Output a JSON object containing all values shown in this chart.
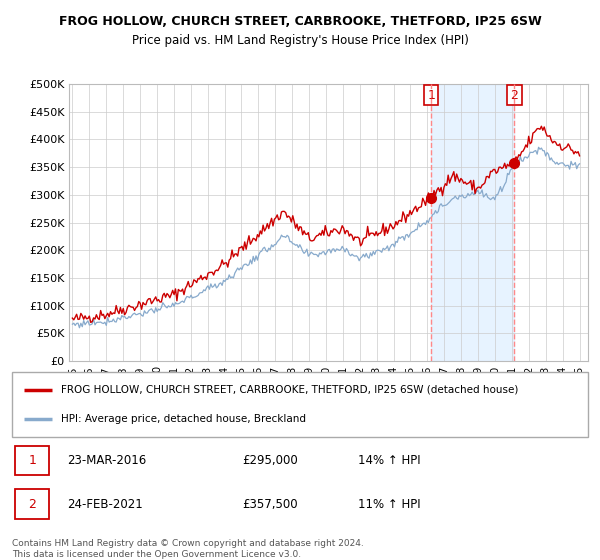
{
  "title1": "FROG HOLLOW, CHURCH STREET, CARBROOKE, THETFORD, IP25 6SW",
  "title2": "Price paid vs. HM Land Registry's House Price Index (HPI)",
  "ylabel_ticks": [
    "£0",
    "£50K",
    "£100K",
    "£150K",
    "£200K",
    "£250K",
    "£300K",
    "£350K",
    "£400K",
    "£450K",
    "£500K"
  ],
  "ytick_values": [
    0,
    50000,
    100000,
    150000,
    200000,
    250000,
    300000,
    350000,
    400000,
    450000,
    500000
  ],
  "ylim": [
    0,
    500000
  ],
  "xlim_start": 1994.8,
  "xlim_end": 2025.5,
  "red_line_color": "#cc0000",
  "blue_line_color": "#88aacc",
  "blue_shade_color": "#ddeeff",
  "marker1_date": 2016.22,
  "marker1_price": 295000,
  "marker2_date": 2021.15,
  "marker2_price": 357500,
  "vline1_x": 2016.22,
  "vline2_x": 2021.15,
  "legend_line1": "FROG HOLLOW, CHURCH STREET, CARBROOKE, THETFORD, IP25 6SW (detached house)",
  "legend_line2": "HPI: Average price, detached house, Breckland",
  "table_row1": [
    "1",
    "23-MAR-2016",
    "£295,000",
    "14% ↑ HPI"
  ],
  "table_row2": [
    "2",
    "24-FEB-2021",
    "£357,500",
    "11% ↑ HPI"
  ],
  "footnote": "Contains HM Land Registry data © Crown copyright and database right 2024.\nThis data is licensed under the Open Government Licence v3.0.",
  "background_color": "#ffffff",
  "plot_bg_color": "#ffffff",
  "grid_color": "#cccccc"
}
